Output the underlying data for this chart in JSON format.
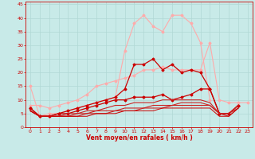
{
  "xlabel": "Vent moyen/en rafales ( km/h )",
  "bg_color": "#c8eae8",
  "grid_color": "#b0d8d5",
  "xlim": [
    -0.5,
    23.5
  ],
  "ylim": [
    0,
    46
  ],
  "yticks": [
    0,
    5,
    10,
    15,
    20,
    25,
    30,
    35,
    40,
    45
  ],
  "xticks": [
    0,
    1,
    2,
    3,
    4,
    5,
    6,
    7,
    8,
    9,
    10,
    11,
    12,
    13,
    14,
    15,
    16,
    17,
    18,
    19,
    20,
    21,
    22,
    23
  ],
  "series": [
    {
      "x": [
        0,
        1,
        2,
        3,
        4,
        5,
        6,
        7,
        8,
        9,
        10,
        11,
        12,
        13,
        14,
        15,
        16,
        17,
        18,
        19
      ],
      "y": [
        15,
        4,
        5,
        5,
        6,
        7,
        8,
        9,
        10,
        11,
        28,
        38,
        41,
        37,
        35,
        41,
        41,
        38,
        31,
        10
      ],
      "color": "#ffaaaa",
      "marker": "D",
      "ms": 1.5,
      "lw": 0.8
    },
    {
      "x": [
        0,
        1,
        2,
        3,
        4,
        5,
        6,
        7,
        8,
        9,
        10,
        11,
        12,
        13,
        14,
        15,
        16,
        17,
        18,
        19,
        20,
        21,
        22,
        23
      ],
      "y": [
        8,
        8,
        7,
        8,
        9,
        10,
        12,
        15,
        16,
        17,
        18,
        19,
        21,
        21,
        22,
        21,
        21,
        21,
        21,
        31,
        10,
        9,
        9,
        9
      ],
      "color": "#ffaaaa",
      "marker": "D",
      "ms": 1.5,
      "lw": 0.8
    },
    {
      "x": [
        0,
        1,
        2,
        3,
        4,
        5,
        6,
        7,
        8,
        9,
        10,
        11,
        12,
        13,
        14,
        15,
        16,
        17,
        18,
        19,
        20,
        21,
        22
      ],
      "y": [
        7,
        4,
        4,
        5,
        6,
        7,
        8,
        9,
        10,
        11,
        14,
        23,
        23,
        25,
        21,
        23,
        20,
        21,
        20,
        14,
        5,
        5,
        8
      ],
      "color": "#cc0000",
      "marker": "D",
      "ms": 1.5,
      "lw": 0.9
    },
    {
      "x": [
        0,
        1,
        2,
        3,
        4,
        5,
        6,
        7,
        8,
        9,
        10,
        11,
        12,
        13,
        14,
        15,
        16,
        17,
        18,
        19,
        20,
        21,
        22
      ],
      "y": [
        7,
        4,
        4,
        5,
        5,
        6,
        7,
        8,
        9,
        10,
        10,
        11,
        11,
        11,
        12,
        10,
        11,
        12,
        14,
        14,
        5,
        5,
        8
      ],
      "color": "#cc0000",
      "marker": "D",
      "ms": 1.5,
      "lw": 0.9
    },
    {
      "x": [
        0,
        1,
        2,
        3,
        4,
        5,
        6,
        7,
        8,
        9,
        10,
        11,
        12,
        13,
        14,
        15,
        16,
        17,
        18,
        19,
        20,
        21,
        22
      ],
      "y": [
        6,
        4,
        4,
        4,
        5,
        5,
        6,
        6,
        7,
        8,
        8,
        9,
        9,
        9,
        10,
        10,
        10,
        10,
        10,
        9,
        5,
        5,
        8
      ],
      "color": "#cc2222",
      "marker": null,
      "ms": 0,
      "lw": 0.8
    },
    {
      "x": [
        0,
        1,
        2,
        3,
        4,
        5,
        6,
        7,
        8,
        9,
        10,
        11,
        12,
        13,
        14,
        15,
        16,
        17,
        18,
        19,
        20,
        21,
        22
      ],
      "y": [
        6,
        4,
        4,
        4,
        4,
        5,
        5,
        6,
        6,
        6,
        7,
        7,
        7,
        8,
        8,
        8,
        9,
        9,
        9,
        8,
        5,
        5,
        7
      ],
      "color": "#cc2222",
      "marker": null,
      "ms": 0,
      "lw": 0.8
    },
    {
      "x": [
        0,
        1,
        2,
        3,
        4,
        5,
        6,
        7,
        8,
        9,
        10,
        11,
        12,
        13,
        14,
        15,
        16,
        17,
        18,
        19,
        20,
        21,
        22
      ],
      "y": [
        6,
        4,
        4,
        4,
        4,
        4,
        5,
        5,
        5,
        6,
        6,
        6,
        7,
        7,
        7,
        8,
        8,
        8,
        8,
        8,
        5,
        4,
        7
      ],
      "color": "#cc2222",
      "marker": null,
      "ms": 0,
      "lw": 0.8
    },
    {
      "x": [
        0,
        1,
        2,
        3,
        4,
        5,
        6,
        7,
        8,
        9,
        10,
        11,
        12,
        13,
        14,
        15,
        16,
        17,
        18,
        19,
        20,
        21,
        22
      ],
      "y": [
        6,
        4,
        4,
        4,
        4,
        4,
        4,
        5,
        5,
        5,
        6,
        6,
        6,
        6,
        7,
        7,
        7,
        7,
        7,
        7,
        4,
        4,
        7
      ],
      "color": "#cc0000",
      "marker": null,
      "ms": 0,
      "lw": 0.7
    }
  ]
}
